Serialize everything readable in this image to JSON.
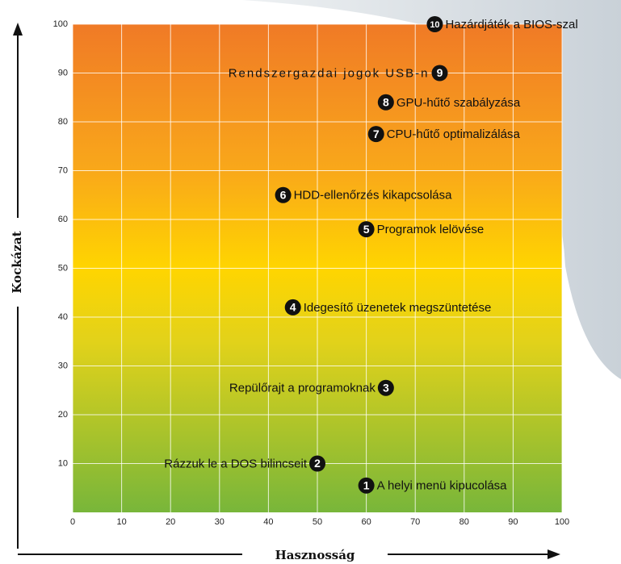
{
  "chart_data": {
    "type": "scatter",
    "xlabel": "Hasznosság",
    "ylabel": "Kockázat",
    "xlim": [
      0,
      100
    ],
    "ylim": [
      0,
      100
    ],
    "xticks": [
      0,
      10,
      20,
      30,
      40,
      50,
      60,
      70,
      80,
      90,
      100
    ],
    "yticks": [
      10,
      20,
      30,
      40,
      50,
      60,
      70,
      80,
      90,
      100
    ],
    "grid": true,
    "marker_color": "#111111",
    "points": [
      {
        "number": "1",
        "label": "A helyi menü kipucolása",
        "x": 60,
        "y": 5.5
      },
      {
        "number": "2",
        "label": "Rázzuk le a DOS bilincseit",
        "x": 50,
        "y": 10
      },
      {
        "number": "3",
        "label": "Repülőrajt a programoknak",
        "x": 64,
        "y": 25.5
      },
      {
        "number": "4",
        "label": "Idegesítő üzenetek megszüntetése",
        "x": 45,
        "y": 42
      },
      {
        "number": "5",
        "label": "Programok lelövése",
        "x": 60,
        "y": 58
      },
      {
        "number": "6",
        "label": "HDD-ellenőrzés kikapcsolása",
        "x": 43,
        "y": 65
      },
      {
        "number": "7",
        "label": "CPU-hűtő optimalizálása",
        "x": 62,
        "y": 77.5
      },
      {
        "number": "8",
        "label": "GPU-hűtő szabályzása",
        "x": 64,
        "y": 84
      },
      {
        "number": "9",
        "label": "Rendszergazdai jogok USB-n",
        "x": 75,
        "y": 90
      },
      {
        "number": "10",
        "label": "Hazárdjáték a BIOS-szal",
        "x": 74,
        "y": 100
      }
    ]
  }
}
